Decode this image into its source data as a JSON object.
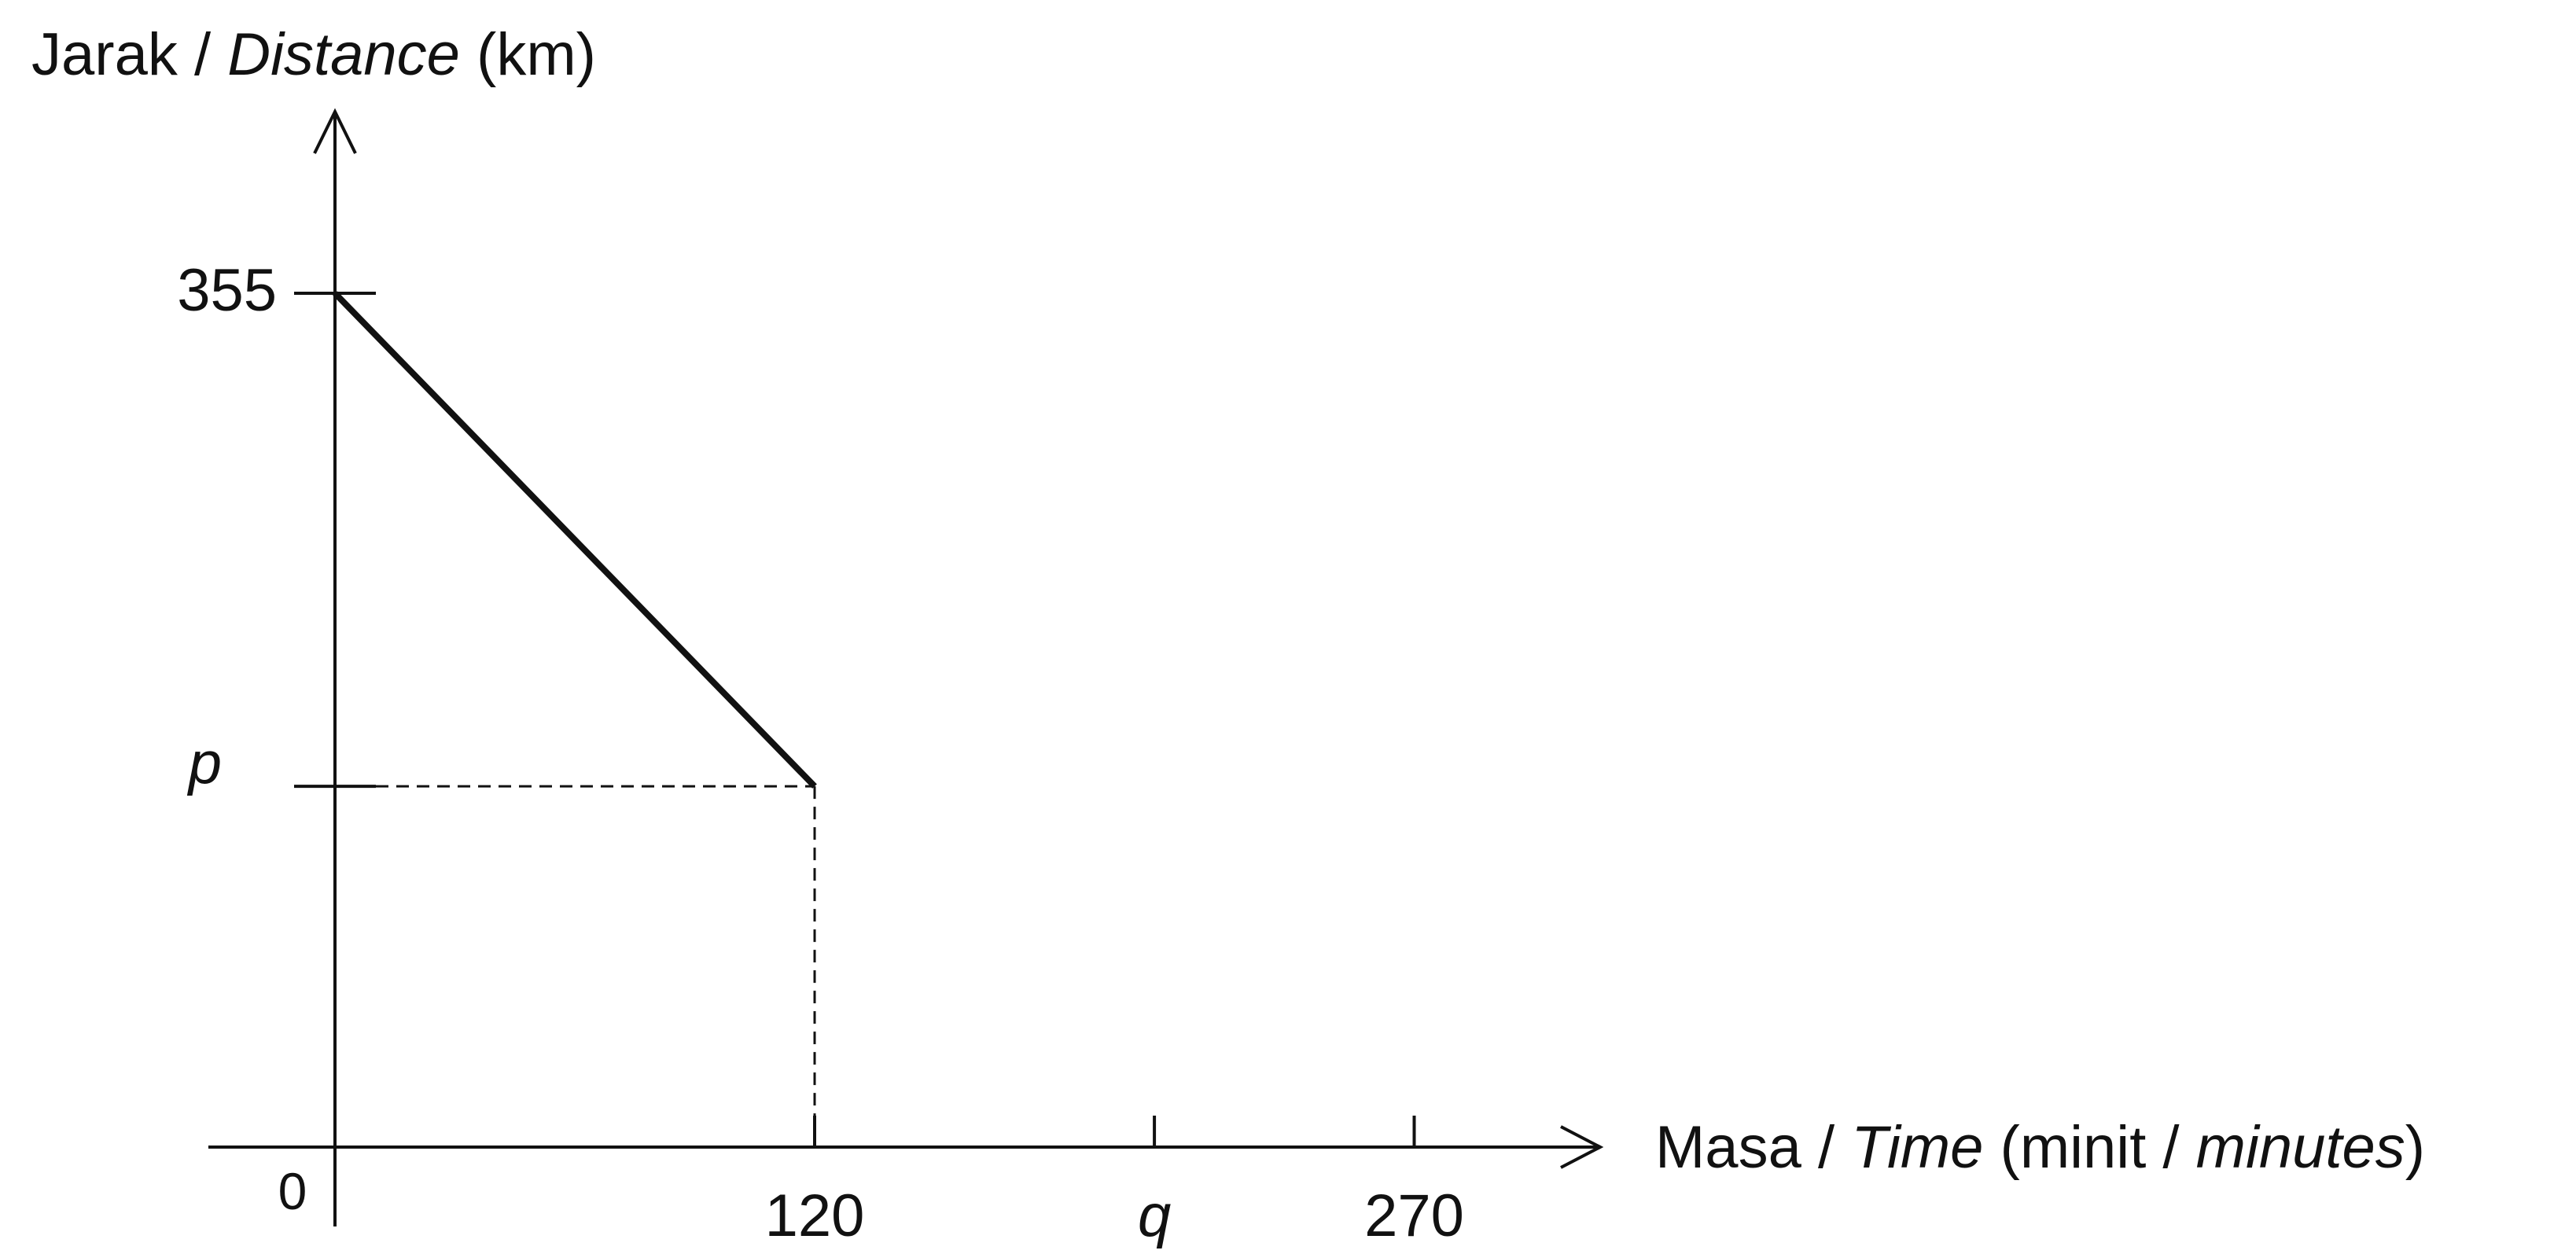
{
  "chart_data": {
    "type": "line",
    "ylabel": {
      "pre": "Jarak / ",
      "italic": "Distance",
      "post": " (km)"
    },
    "xlabel": {
      "pre": "Masa / ",
      "italic": "Time",
      "mid": " (minit / ",
      "italic2": "minutes",
      "post": ")"
    },
    "origin_label": "0",
    "y_ticks": [
      {
        "label": "355",
        "value": 355,
        "italic": false
      },
      {
        "label": "p",
        "value": 150,
        "italic": true
      }
    ],
    "x_ticks": [
      {
        "label": "120",
        "value": 120,
        "italic": false
      },
      {
        "label": "q",
        "value": 205,
        "italic": true
      },
      {
        "label": "270",
        "value": 270,
        "italic": false
      }
    ],
    "series": [
      {
        "points": [
          [
            0,
            355
          ],
          [
            120,
            150
          ]
        ]
      }
    ],
    "guides": [
      {
        "from": [
          0,
          150
        ],
        "to": [
          120,
          150
        ]
      },
      {
        "from": [
          120,
          150
        ],
        "to": [
          120,
          0
        ]
      }
    ],
    "xlim": [
      0,
      270
    ],
    "ylim": [
      0,
      355
    ],
    "grid": false
  }
}
